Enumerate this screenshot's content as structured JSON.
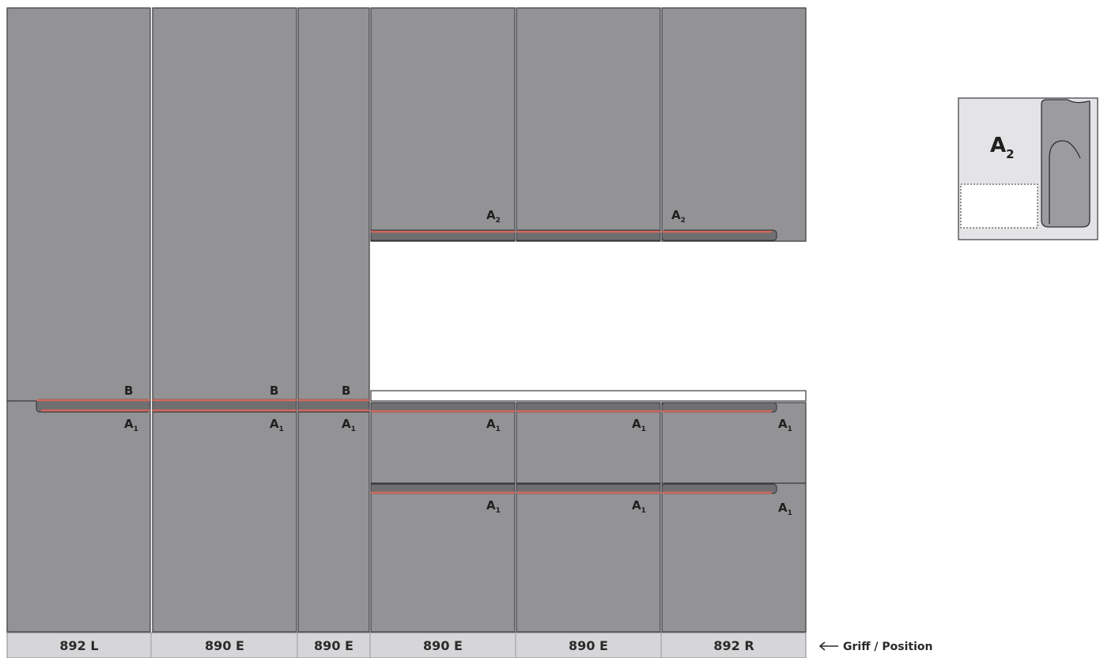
{
  "positions": [
    "892 L",
    "890 E",
    "890 E",
    "890 E",
    "890 E",
    "892 R"
  ],
  "legend_label": "Griff / Position",
  "handle_labels": {
    "b": "B",
    "a1_letter": "A",
    "a1_sub": "1",
    "a2_letter": "A",
    "a2_sub": "2"
  },
  "inset": {
    "letter": "A",
    "sub": "2"
  },
  "colors": {
    "panel": "#939396",
    "handle_accent": "#d2685c",
    "bottom_bar": "#d6d6d8"
  }
}
